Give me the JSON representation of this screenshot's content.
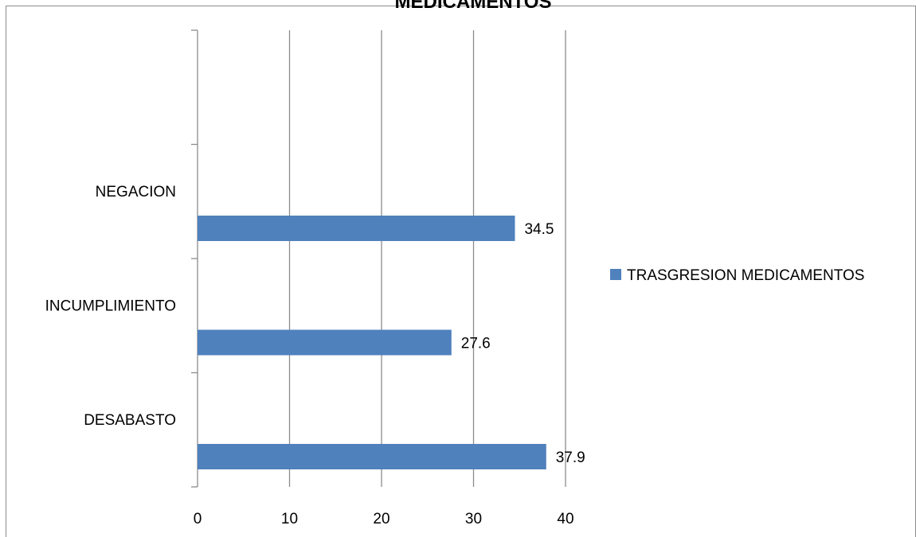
{
  "chart_data": {
    "type": "bar",
    "orientation": "horizontal",
    "title": "MEDICAMENTOS",
    "categories": [
      "DESABASTO",
      "INCUMPLIMIENTO",
      "NEGACION"
    ],
    "series": [
      {
        "name": "TRASGRESION MEDICAMENTOS",
        "values": [
          37.9,
          27.6,
          34.5
        ],
        "color": "#4F81BD"
      }
    ],
    "category_slots": 4,
    "xlim": [
      0,
      40
    ],
    "xticks": [
      0,
      10,
      20,
      30,
      40
    ],
    "grid": "vertical",
    "legend_position": "right"
  }
}
